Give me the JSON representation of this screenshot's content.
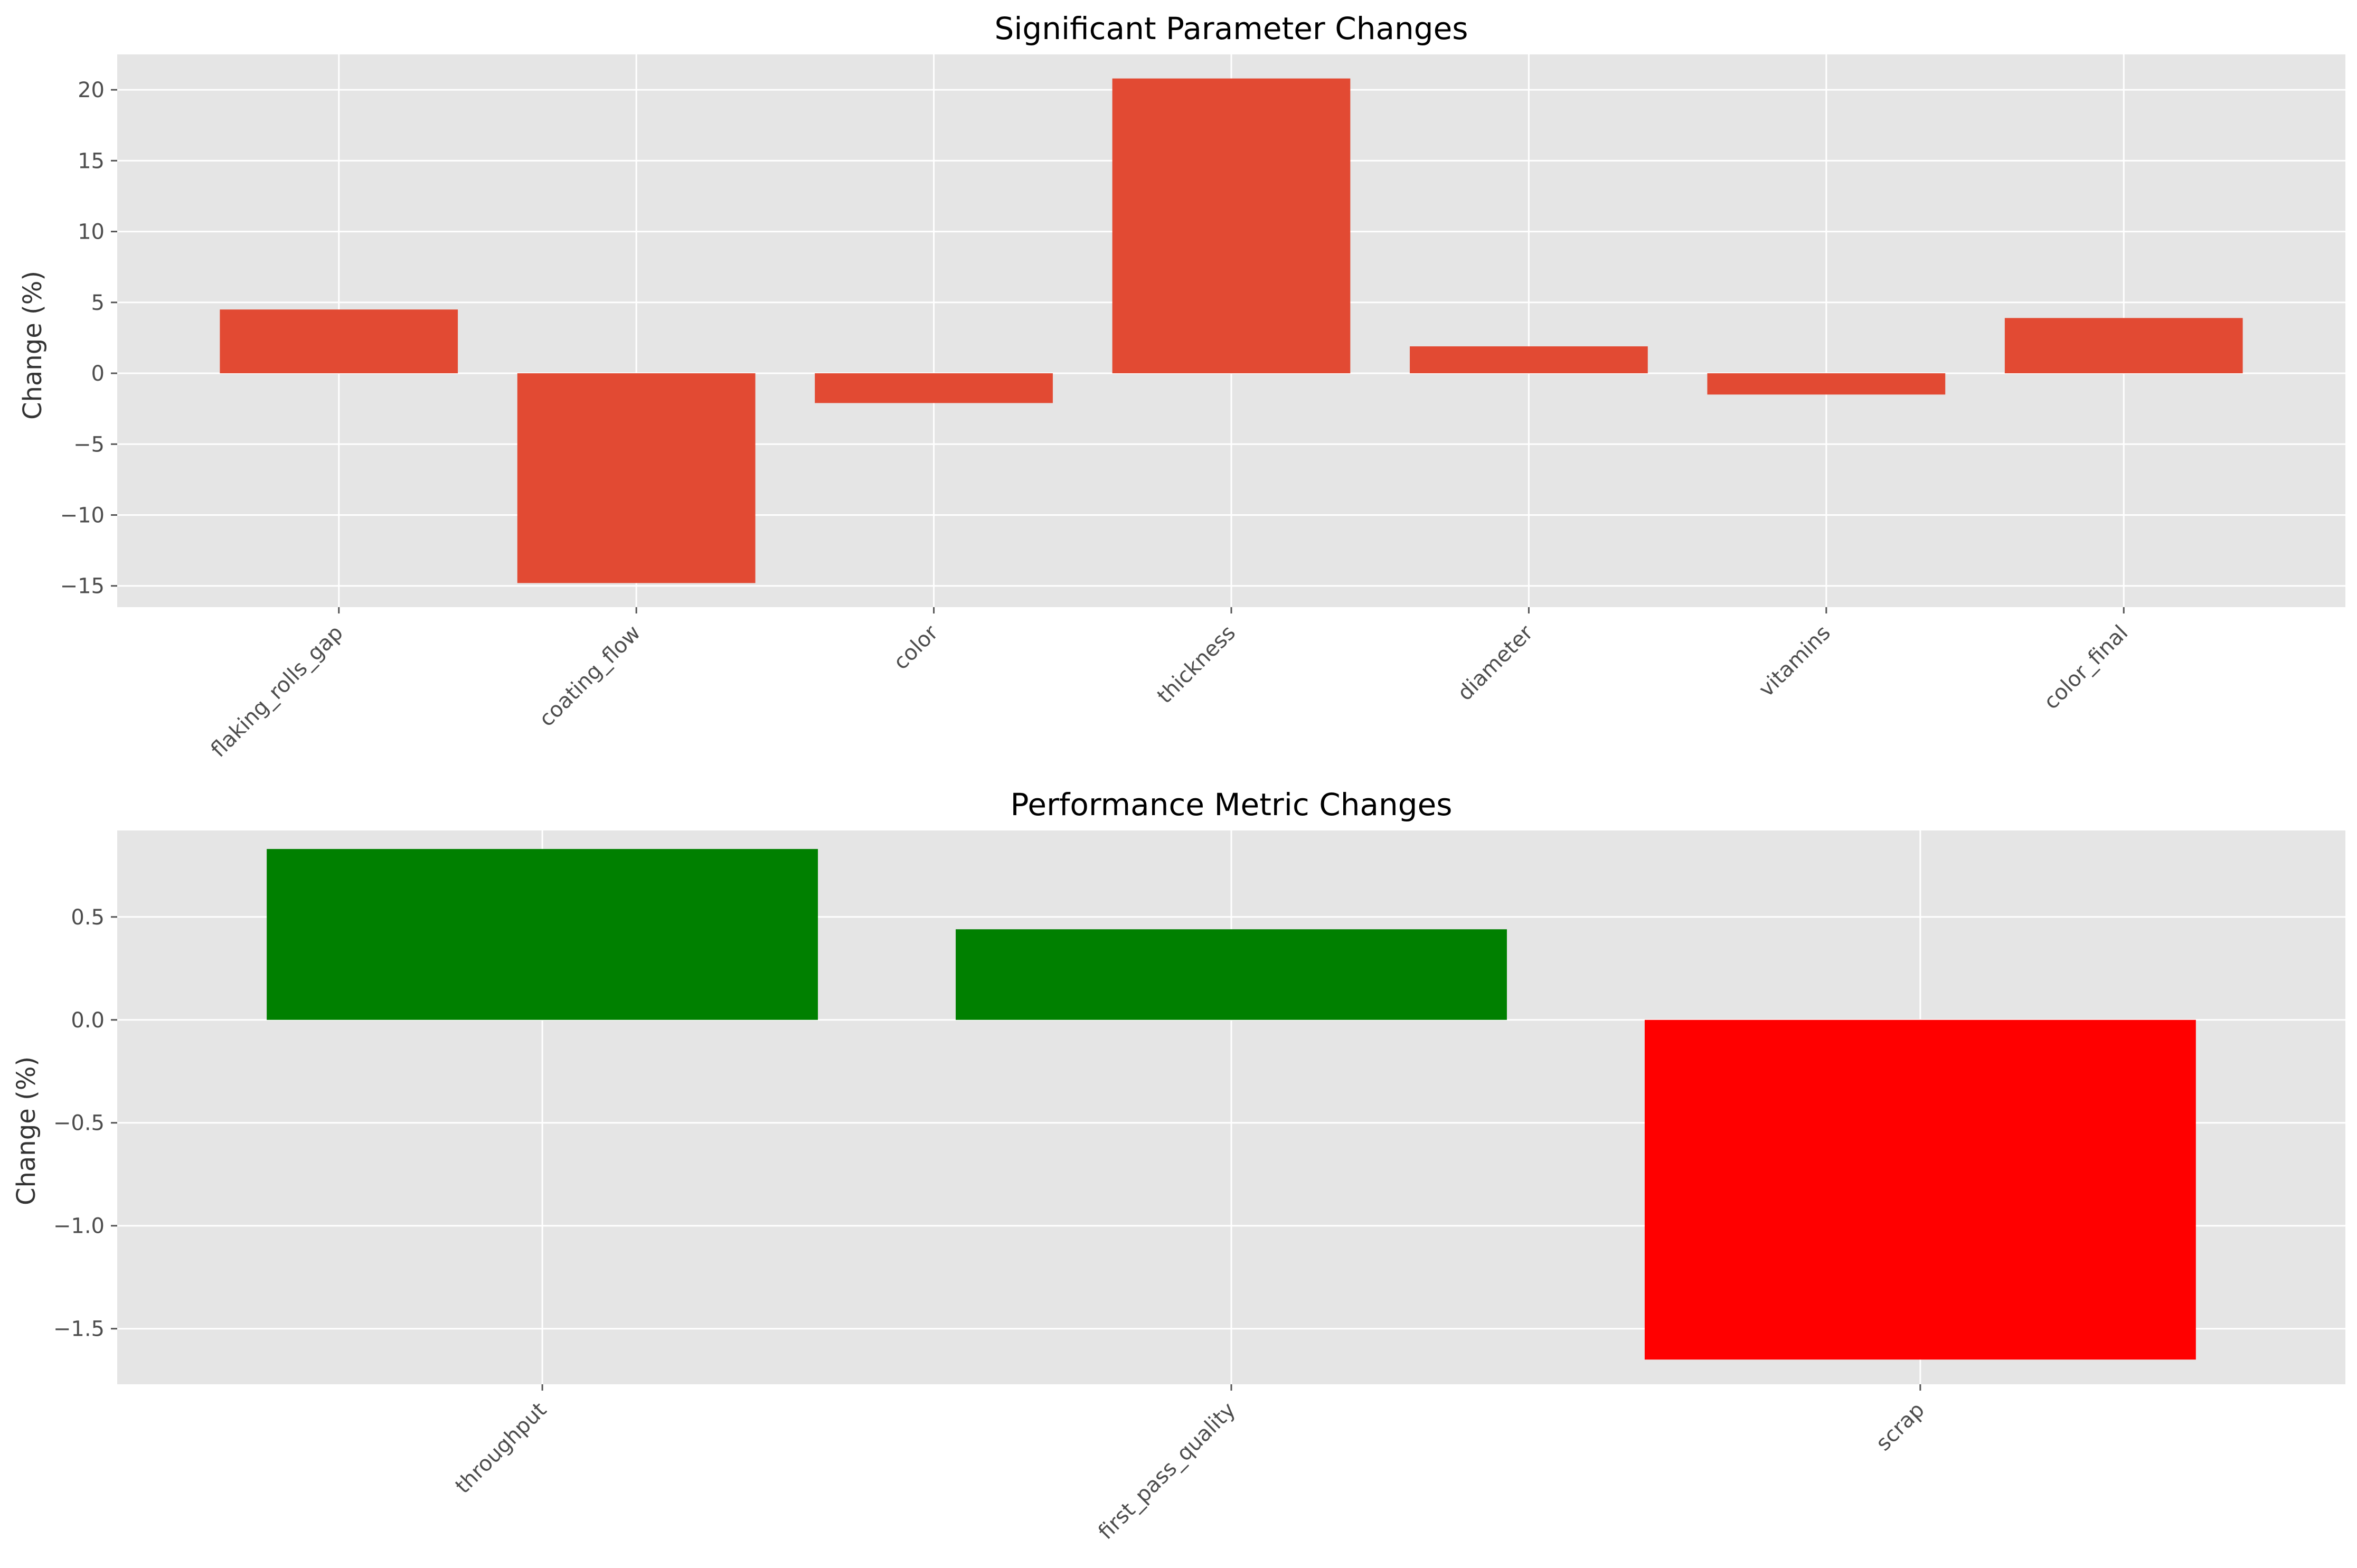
{
  "chart_data": [
    {
      "type": "bar",
      "title": "Significant Parameter Changes",
      "xlabel": "",
      "ylabel": "Change (%)",
      "categories": [
        "flaking_rolls_gap",
        "coating_flow",
        "color",
        "thickness",
        "diameter",
        "vitamins",
        "color_final"
      ],
      "values": [
        4.5,
        -14.8,
        -2.1,
        20.8,
        1.9,
        -1.5,
        3.9
      ],
      "bar_color": "#E24A33",
      "ylim": [
        -16.5,
        22.5
      ],
      "yticks": [
        -15,
        -10,
        -5,
        0,
        5,
        10,
        15,
        20
      ],
      "ytick_labels": [
        "−15",
        "−10",
        "−5",
        "0",
        "5",
        "10",
        "15",
        "20"
      ],
      "grid": true
    },
    {
      "type": "bar",
      "title": "Performance Metric Changes",
      "xlabel": "",
      "ylabel": "Change (%)",
      "categories": [
        "throughput",
        "first_pass_quality",
        "scrap"
      ],
      "values": [
        0.83,
        0.44,
        -1.65
      ],
      "bar_colors": [
        "#008000",
        "#008000",
        "#FF0000"
      ],
      "ylim": [
        -1.77,
        0.92
      ],
      "yticks": [
        -1.5,
        -1.0,
        -0.5,
        0.0,
        0.5
      ],
      "ytick_labels": [
        "−1.5",
        "−1.0",
        "−0.5",
        "0.0",
        "0.5"
      ],
      "grid": true
    }
  ],
  "style": {
    "axes_background": "#E5E5E5",
    "grid_color": "#FFFFFF"
  }
}
